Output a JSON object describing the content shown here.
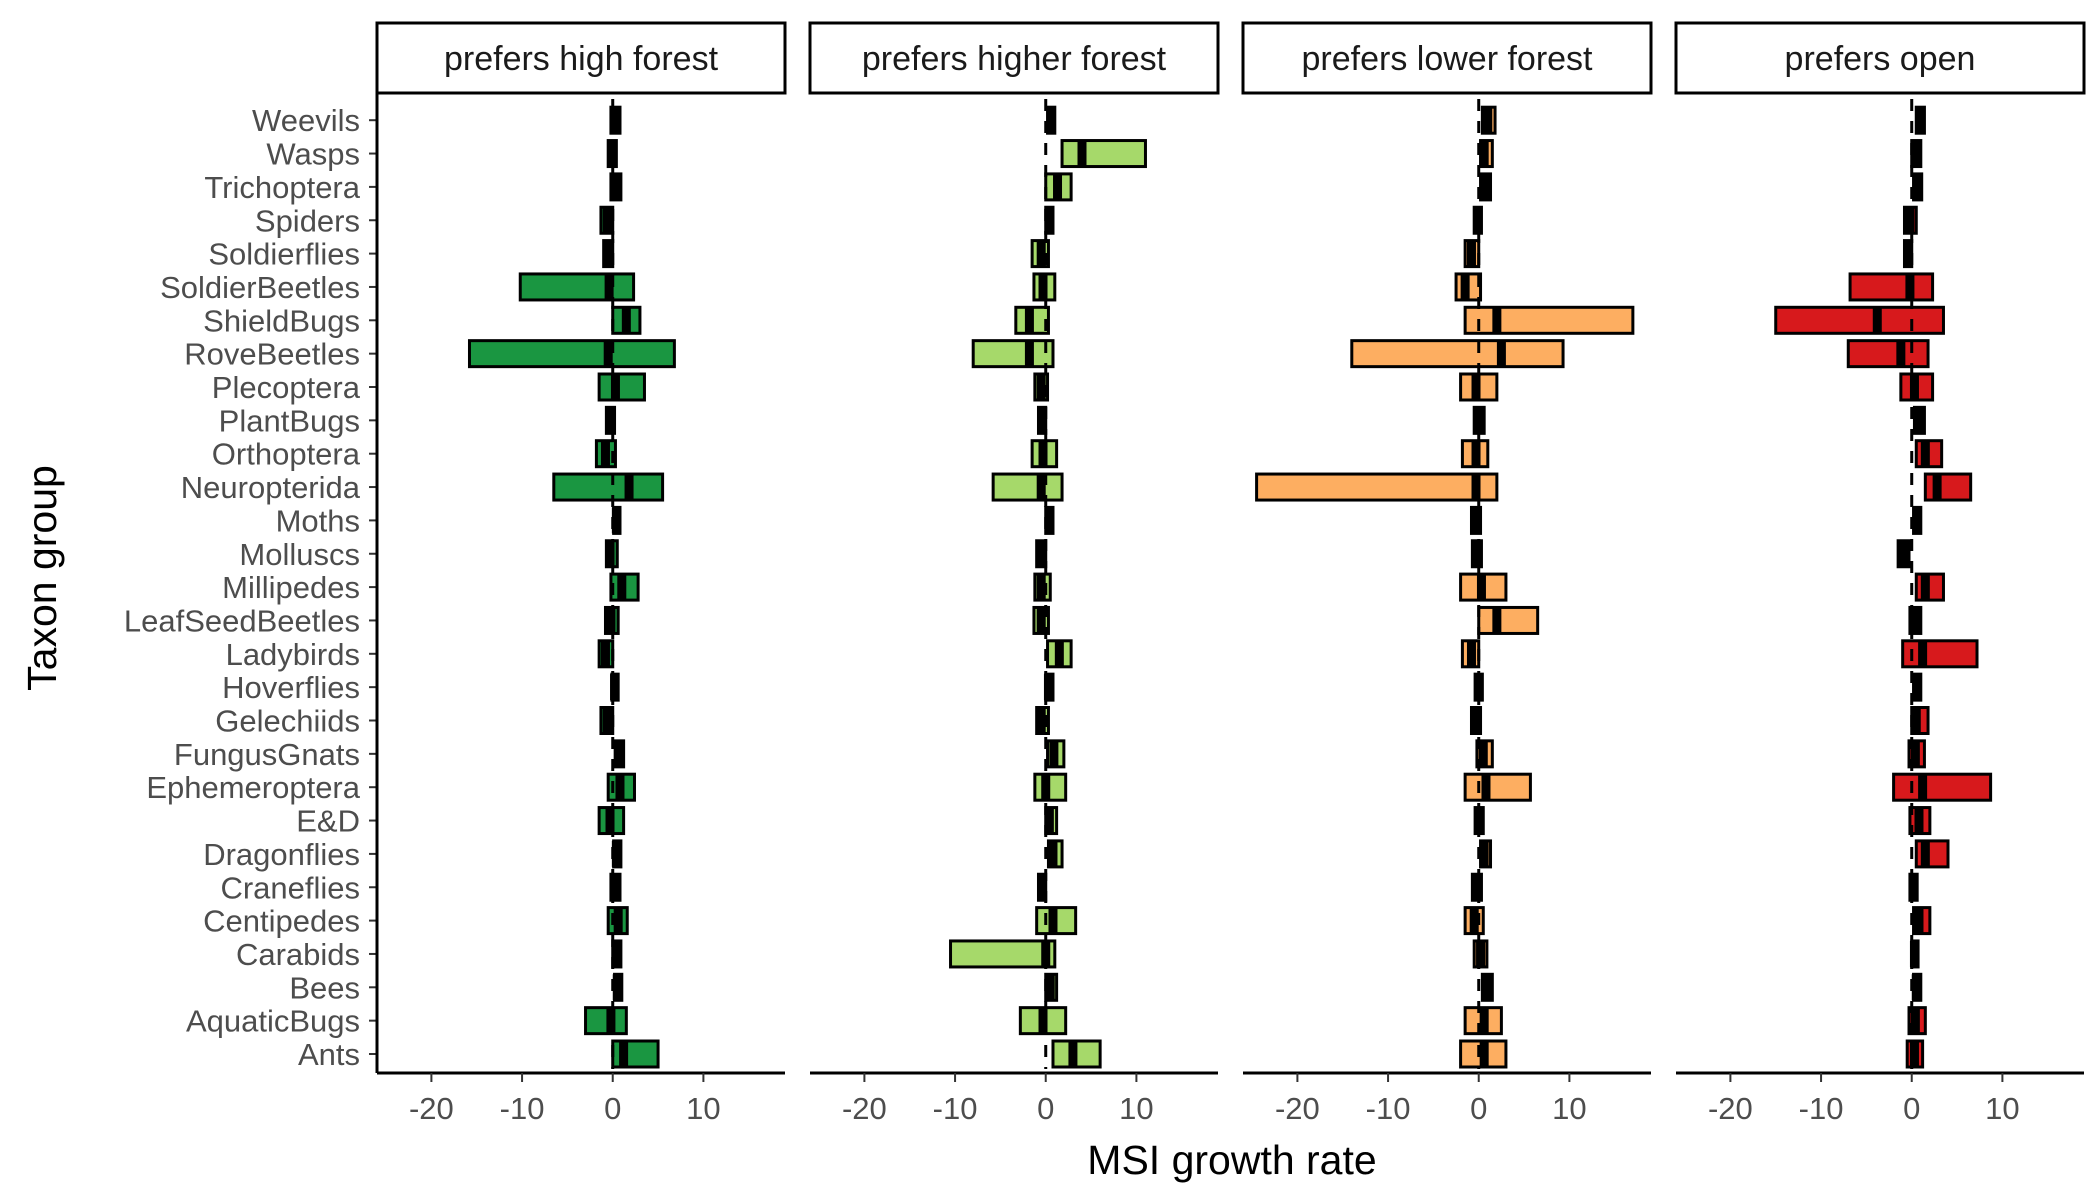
{
  "chart_data": {
    "type": "bar",
    "xlabel": "MSI growth rate",
    "ylabel": "Taxon group",
    "xlim": [
      -26,
      19
    ],
    "xticks": [
      -20,
      -10,
      0,
      10
    ],
    "grid": false,
    "reference_line": 0,
    "categories": [
      "Ants",
      "AquaticBugs",
      "Bees",
      "Carabids",
      "Centipedes",
      "Craneflies",
      "Dragonflies",
      "E&D",
      "Ephemeroptera",
      "FungusGnats",
      "Gelechiids",
      "Hoverflies",
      "Ladybirds",
      "LeafSeedBeetles",
      "Millipedes",
      "Molluscs",
      "Moths",
      "Neuropterida",
      "Orthoptera",
      "PlantBugs",
      "Plecoptera",
      "RoveBeetles",
      "ShieldBugs",
      "SoldierBeetles",
      "Soldierflies",
      "Spiders",
      "Trichoptera",
      "Wasps",
      "Weevils"
    ],
    "panels": [
      {
        "label": "prefers high forest",
        "color": "#1a9641",
        "values": [
          {
            "low": 0,
            "mid": 1.2,
            "high": 5
          },
          {
            "low": -3,
            "mid": -0.2,
            "high": 1.5
          },
          {
            "low": 0.2,
            "mid": 0.5,
            "high": 1
          },
          {
            "low": 0,
            "mid": 0.4,
            "high": 0.9
          },
          {
            "low": -0.5,
            "mid": 0.6,
            "high": 1.6
          },
          {
            "low": -0.2,
            "mid": 0.2,
            "high": 0.8
          },
          {
            "low": 0.1,
            "mid": 0.4,
            "high": 0.9
          },
          {
            "low": -1.5,
            "mid": -0.3,
            "high": 1.2
          },
          {
            "low": -0.5,
            "mid": 0.8,
            "high": 2.4
          },
          {
            "low": 0.3,
            "mid": 0.6,
            "high": 1.2
          },
          {
            "low": -1.3,
            "mid": -0.6,
            "high": 0
          },
          {
            "low": -0.1,
            "mid": 0.2,
            "high": 0.6
          },
          {
            "low": -1.5,
            "mid": -0.8,
            "high": 0
          },
          {
            "low": -0.8,
            "mid": -0.2,
            "high": 0.6
          },
          {
            "low": -0.2,
            "mid": 1,
            "high": 2.8
          },
          {
            "low": -0.7,
            "mid": -0.3,
            "high": 0.5
          },
          {
            "low": 0.1,
            "mid": 0.4,
            "high": 0.8
          },
          {
            "low": -6.5,
            "mid": 1.8,
            "high": 5.5
          },
          {
            "low": -1.8,
            "mid": -0.8,
            "high": 0.3
          },
          {
            "low": -0.7,
            "mid": -0.3,
            "high": 0.2
          },
          {
            "low": -1.5,
            "mid": 0.3,
            "high": 3.5
          },
          {
            "low": -15.8,
            "mid": -0.5,
            "high": 6.8
          },
          {
            "low": 0,
            "mid": 1.5,
            "high": 3
          },
          {
            "low": -10.2,
            "mid": -0.4,
            "high": 2.3
          },
          {
            "low": -1,
            "mid": -0.5,
            "high": 0
          },
          {
            "low": -1.3,
            "mid": -0.6,
            "high": 0
          },
          {
            "low": -0.2,
            "mid": 0.3,
            "high": 0.9
          },
          {
            "low": -0.5,
            "mid": -0.1,
            "high": 0.4
          },
          {
            "low": -0.2,
            "mid": 0.2,
            "high": 0.8
          }
        ]
      },
      {
        "label": "prefers higher forest",
        "color": "#a6d96a",
        "values": [
          {
            "low": 0.8,
            "mid": 3,
            "high": 6
          },
          {
            "low": -2.8,
            "mid": -0.3,
            "high": 2.2
          },
          {
            "low": 0,
            "mid": 0.5,
            "high": 1.2
          },
          {
            "low": -10.5,
            "mid": 0,
            "high": 1
          },
          {
            "low": -1,
            "mid": 0.8,
            "high": 3.3
          },
          {
            "low": -0.8,
            "mid": -0.4,
            "high": 0
          },
          {
            "low": 0.3,
            "mid": 0.8,
            "high": 1.8
          },
          {
            "low": 0,
            "mid": 0.4,
            "high": 1.2
          },
          {
            "low": -1.2,
            "mid": 0,
            "high": 2.2
          },
          {
            "low": 0.2,
            "mid": 0.9,
            "high": 2
          },
          {
            "low": -1,
            "mid": -0.5,
            "high": 0.3
          },
          {
            "low": 0,
            "mid": 0.3,
            "high": 0.8
          },
          {
            "low": 0.2,
            "mid": 1.5,
            "high": 2.8
          },
          {
            "low": -1.3,
            "mid": -0.5,
            "high": 0.3
          },
          {
            "low": -1.2,
            "mid": -0.5,
            "high": 0.5
          },
          {
            "low": -1,
            "mid": -0.5,
            "high": 0
          },
          {
            "low": 0,
            "mid": 0.4,
            "high": 0.8
          },
          {
            "low": -5.8,
            "mid": -0.5,
            "high": 1.8
          },
          {
            "low": -1.5,
            "mid": -0.3,
            "high": 1.2
          },
          {
            "low": -0.8,
            "mid": -0.4,
            "high": 0
          },
          {
            "low": -1.2,
            "mid": -0.5,
            "high": 0.2
          },
          {
            "low": -8,
            "mid": -1.8,
            "high": 0.8
          },
          {
            "low": -3.3,
            "mid": -1.8,
            "high": 0.3
          },
          {
            "low": -1.3,
            "mid": -0.3,
            "high": 1
          },
          {
            "low": -1.5,
            "mid": -0.5,
            "high": 0.3
          },
          {
            "low": 0,
            "mid": 0.4,
            "high": 0.8
          },
          {
            "low": 0,
            "mid": 1.3,
            "high": 2.8
          },
          {
            "low": 1.8,
            "mid": 4,
            "high": 11
          },
          {
            "low": 0.2,
            "mid": 0.6,
            "high": 1
          }
        ]
      },
      {
        "label": "prefers lower forest",
        "color": "#fdae61",
        "values": [
          {
            "low": -2,
            "mid": 0.6,
            "high": 3
          },
          {
            "low": -1.5,
            "mid": 0.6,
            "high": 2.5
          },
          {
            "low": 0.4,
            "mid": 0.9,
            "high": 1.5
          },
          {
            "low": -0.5,
            "mid": 0.2,
            "high": 0.9
          },
          {
            "low": -1.5,
            "mid": -0.5,
            "high": 0.5
          },
          {
            "low": -0.7,
            "mid": -0.3,
            "high": 0.3
          },
          {
            "low": 0.2,
            "mid": 0.6,
            "high": 1.3
          },
          {
            "low": -0.4,
            "mid": 0,
            "high": 0.5
          },
          {
            "low": -1.5,
            "mid": 0.8,
            "high": 5.7
          },
          {
            "low": -0.2,
            "mid": 0.5,
            "high": 1.5
          },
          {
            "low": -0.8,
            "mid": -0.3,
            "high": 0.2
          },
          {
            "low": -0.4,
            "mid": 0,
            "high": 0.4
          },
          {
            "low": -1.8,
            "mid": -0.8,
            "high": 0
          },
          {
            "low": 0,
            "mid": 2,
            "high": 6.5
          },
          {
            "low": -2,
            "mid": 0.3,
            "high": 3
          },
          {
            "low": -0.7,
            "mid": -0.2,
            "high": 0.3
          },
          {
            "low": -0.8,
            "mid": -0.3,
            "high": 0.2
          },
          {
            "low": -24.5,
            "mid": -0.3,
            "high": 2
          },
          {
            "low": -1.8,
            "mid": -0.3,
            "high": 1
          },
          {
            "low": -0.5,
            "mid": 0,
            "high": 0.6
          },
          {
            "low": -2,
            "mid": -0.3,
            "high": 2
          },
          {
            "low": -14,
            "mid": 2.5,
            "high": 9.3
          },
          {
            "low": -1.5,
            "mid": 2,
            "high": 17
          },
          {
            "low": -2.5,
            "mid": -1.5,
            "high": 0.2
          },
          {
            "low": -1.5,
            "mid": -0.8,
            "high": 0
          },
          {
            "low": -0.5,
            "mid": -0.1,
            "high": 0.3
          },
          {
            "low": 0.2,
            "mid": 0.7,
            "high": 1.3
          },
          {
            "low": 0.2,
            "mid": 0.6,
            "high": 1.5
          },
          {
            "low": 0.4,
            "mid": 1,
            "high": 1.8
          }
        ]
      },
      {
        "label": "prefers open",
        "color": "#d7191c",
        "values": [
          {
            "low": -0.5,
            "mid": 0.3,
            "high": 1.2
          },
          {
            "low": -0.3,
            "mid": 0.4,
            "high": 1.5
          },
          {
            "low": 0.2,
            "mid": 0.5,
            "high": 1
          },
          {
            "low": 0,
            "mid": 0.3,
            "high": 0.7
          },
          {
            "low": 0.2,
            "mid": 0.8,
            "high": 2
          },
          {
            "low": -0.2,
            "mid": 0.2,
            "high": 0.6
          },
          {
            "low": 0.5,
            "mid": 1.5,
            "high": 4
          },
          {
            "low": -0.2,
            "mid": 0.8,
            "high": 2
          },
          {
            "low": -2,
            "mid": 1.2,
            "high": 8.7
          },
          {
            "low": -0.3,
            "mid": 0.4,
            "high": 1.4
          },
          {
            "low": 0,
            "mid": 0.5,
            "high": 1.8
          },
          {
            "low": 0.2,
            "mid": 0.6,
            "high": 1
          },
          {
            "low": -1,
            "mid": 1.2,
            "high": 7.2
          },
          {
            "low": -0.2,
            "mid": 0.4,
            "high": 1
          },
          {
            "low": 0.5,
            "mid": 1.5,
            "high": 3.5
          },
          {
            "low": -1.5,
            "mid": -0.9,
            "high": -0.3
          },
          {
            "low": 0.2,
            "mid": 0.6,
            "high": 1
          },
          {
            "low": 1.5,
            "mid": 2.8,
            "high": 6.5
          },
          {
            "low": 0.5,
            "mid": 1.5,
            "high": 3.3
          },
          {
            "low": 0.3,
            "mid": 0.8,
            "high": 1.4
          },
          {
            "low": -1.2,
            "mid": 0.3,
            "high": 2.3
          },
          {
            "low": -7,
            "mid": -1.2,
            "high": 1.8
          },
          {
            "low": -15,
            "mid": -3.8,
            "high": 3.5
          },
          {
            "low": -6.8,
            "mid": -0.2,
            "high": 2.3
          },
          {
            "low": -0.8,
            "mid": -0.4,
            "high": 0
          },
          {
            "low": -0.8,
            "mid": -0.2,
            "high": 0.5
          },
          {
            "low": 0.2,
            "mid": 0.6,
            "high": 1.1
          },
          {
            "low": 0,
            "mid": 0.5,
            "high": 1
          },
          {
            "low": 0.5,
            "mid": 0.9,
            "high": 1.4
          }
        ]
      }
    ]
  }
}
